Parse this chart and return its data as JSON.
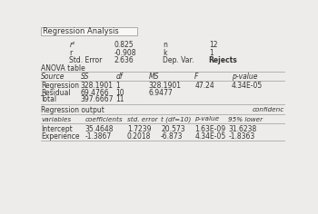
{
  "title": "Regression Analysis",
  "summary": {
    "r2_label": "r²",
    "r2_value": "0.825",
    "r_label": "r",
    "r_value": "-0.908",
    "stderr_label": "Std. Error",
    "stderr_value": "2.636",
    "n_label": "n",
    "n_value": "12",
    "k_label": "k",
    "k_value": "1",
    "depvar_label": "Dep. Var.",
    "depvar_value": "Rejects"
  },
  "anova_title": "ANOVA table",
  "anova_headers": [
    "Source",
    "SS",
    "df",
    "MS",
    "F",
    "p-value"
  ],
  "anova_rows": [
    [
      "Regression",
      "328.1901",
      "1",
      "328.1901",
      "47.24",
      "4.34E-05"
    ],
    [
      "Residual",
      "69.4766",
      "10",
      "6.9477",
      "",
      ""
    ],
    [
      "Total",
      "397.6667",
      "11",
      "",
      "",
      ""
    ]
  ],
  "reg_title": "Regression output",
  "reg_note": "confidenc",
  "reg_headers": [
    "variables",
    "coefficients",
    "std. error",
    "t (df=10)",
    "p-value",
    "95% lower",
    ""
  ],
  "reg_rows": [
    [
      "Intercept",
      "35.4648",
      "1.7239",
      "20.573",
      "1.63E-09",
      "31.6238",
      ""
    ],
    [
      "Experience",
      "-1.3867",
      "0.2018",
      "-6.873",
      "4.34E-05",
      "-1.8363",
      ""
    ]
  ],
  "bg_color": "#edecea",
  "title_box_color": "#f8f7f5",
  "line_color": "#aaaaaa",
  "text_color": "#333333",
  "font_size": 5.5
}
